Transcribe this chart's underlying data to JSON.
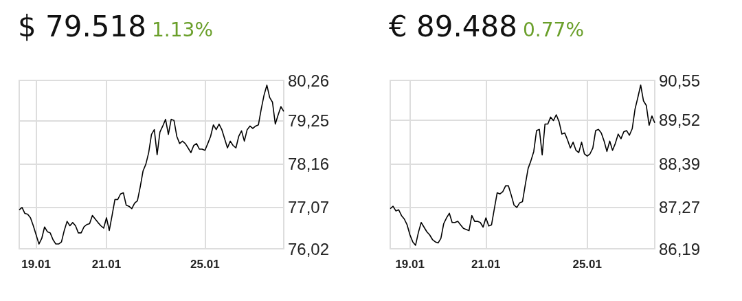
{
  "chart_data": [
    {
      "type": "line",
      "title": "$ 79.518",
      "subtitle": "1.13%",
      "color": "#000000",
      "grid": true,
      "categories": [
        null,
        null,
        null,
        null,
        null,
        null,
        "19.01",
        null,
        null,
        null,
        null,
        null,
        null,
        null,
        null,
        null,
        null,
        null,
        null,
        null,
        null,
        null,
        null,
        null,
        null,
        null,
        null,
        null,
        null,
        null,
        null,
        "21.01",
        null,
        null,
        null,
        null,
        null,
        null,
        null,
        null,
        null,
        null,
        null,
        null,
        null,
        null,
        null,
        null,
        null,
        null,
        null,
        null,
        null,
        null,
        null,
        null,
        null,
        null,
        null,
        null,
        null,
        null,
        null,
        null,
        null,
        null,
        "25.01",
        null,
        null,
        null,
        null,
        null,
        null,
        null,
        null,
        null,
        null,
        null,
        null,
        null,
        null,
        null,
        null,
        null,
        null,
        null,
        null,
        null,
        null,
        null,
        null,
        null,
        null,
        null,
        null
      ],
      "ylim": [
        76.02,
        80.26
      ],
      "yticks": [
        {
          "value": 76.02,
          "label": "76,02"
        },
        {
          "value": 77.07,
          "label": "77,07"
        },
        {
          "value": 78.16,
          "label": "78,16"
        },
        {
          "value": 79.25,
          "label": "79,25"
        },
        {
          "value": 80.26,
          "label": "80,26"
        }
      ],
      "values": [
        77.0,
        77.06,
        76.91,
        76.89,
        76.8,
        76.6,
        76.37,
        76.14,
        76.28,
        76.57,
        76.45,
        76.42,
        76.25,
        76.14,
        76.14,
        76.19,
        76.48,
        76.71,
        76.6,
        76.68,
        76.6,
        76.42,
        76.42,
        76.57,
        76.63,
        76.65,
        76.86,
        76.77,
        76.68,
        76.6,
        76.54,
        76.8,
        76.48,
        76.86,
        77.26,
        77.26,
        77.4,
        77.43,
        77.12,
        77.09,
        77.03,
        77.17,
        77.23,
        77.58,
        77.98,
        78.15,
        78.44,
        78.9,
        79.02,
        78.39,
        78.96,
        79.11,
        79.28,
        78.9,
        79.28,
        79.25,
        78.85,
        78.67,
        78.73,
        78.67,
        78.56,
        78.44,
        78.62,
        78.67,
        78.53,
        78.53,
        78.5,
        78.67,
        78.85,
        79.14,
        79.02,
        79.16,
        79.02,
        78.79,
        78.56,
        78.73,
        78.62,
        78.56,
        78.85,
        78.99,
        78.73,
        79.02,
        79.11,
        79.05,
        79.11,
        79.14,
        79.54,
        79.89,
        80.14,
        79.83,
        79.71,
        79.16,
        79.39,
        79.6,
        79.48
      ]
    },
    {
      "type": "line",
      "title": "€ 89.488",
      "subtitle": "0.77%",
      "color": "#000000",
      "grid": true,
      "categories": [
        null,
        null,
        null,
        null,
        null,
        null,
        null,
        "19.01",
        null,
        null,
        null,
        null,
        null,
        null,
        null,
        null,
        null,
        null,
        null,
        null,
        null,
        null,
        null,
        null,
        null,
        null,
        null,
        null,
        null,
        null,
        null,
        null,
        null,
        null,
        "21.01",
        null,
        null,
        null,
        null,
        null,
        null,
        null,
        null,
        null,
        null,
        null,
        null,
        null,
        null,
        null,
        null,
        null,
        null,
        null,
        null,
        null,
        null,
        null,
        null,
        null,
        null,
        null,
        null,
        null,
        null,
        null,
        null,
        null,
        null,
        null,
        "25.01",
        null,
        null,
        null,
        null,
        null,
        null,
        null,
        null,
        null,
        null,
        null,
        null,
        null,
        null,
        null,
        null,
        null,
        null,
        null,
        null,
        null,
        null,
        null,
        null
      ],
      "ylim": [
        86.19,
        90.55
      ],
      "yticks": [
        {
          "value": 86.19,
          "label": "86,19"
        },
        {
          "value": 87.27,
          "label": "87,27"
        },
        {
          "value": 88.39,
          "label": "88,39"
        },
        {
          "value": 89.52,
          "label": "89,52"
        },
        {
          "value": 90.55,
          "label": "90,55"
        }
      ],
      "values": [
        87.23,
        87.29,
        87.17,
        87.2,
        87.05,
        86.96,
        86.81,
        86.55,
        86.37,
        86.28,
        86.61,
        86.87,
        86.75,
        86.63,
        86.55,
        86.43,
        86.37,
        86.34,
        86.46,
        86.84,
        86.99,
        87.11,
        86.87,
        86.87,
        86.9,
        86.81,
        86.72,
        86.69,
        86.66,
        87.05,
        86.9,
        86.9,
        86.87,
        86.75,
        86.99,
        86.78,
        86.81,
        87.23,
        87.64,
        87.61,
        87.67,
        87.82,
        87.82,
        87.58,
        87.32,
        87.26,
        87.38,
        87.41,
        87.85,
        88.27,
        88.47,
        88.71,
        89.25,
        89.28,
        88.62,
        89.42,
        89.42,
        89.6,
        89.51,
        89.66,
        89.48,
        89.16,
        89.19,
        89.01,
        88.8,
        88.95,
        88.74,
        88.68,
        88.95,
        88.65,
        88.59,
        88.65,
        88.8,
        89.25,
        89.28,
        89.19,
        88.98,
        88.71,
        88.98,
        88.74,
        88.92,
        89.16,
        89.04,
        89.22,
        89.25,
        89.13,
        89.3,
        89.81,
        90.11,
        90.43,
        90.02,
        89.9,
        89.39,
        89.63,
        89.45
      ]
    }
  ]
}
